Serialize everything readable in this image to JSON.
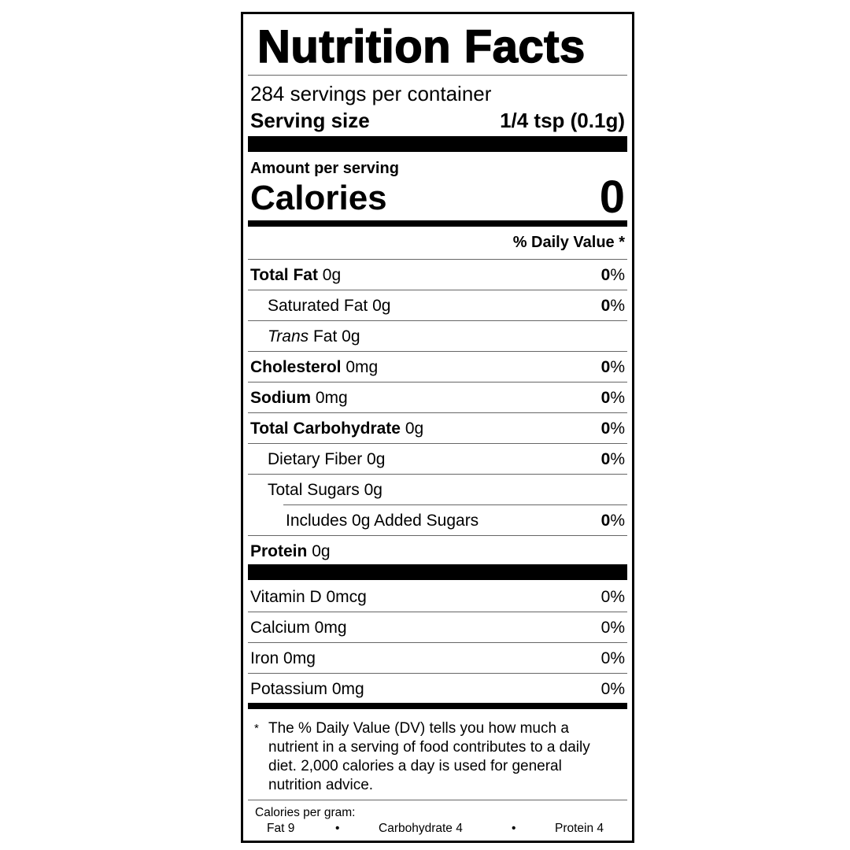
{
  "title": "Nutrition Facts",
  "servings_per_container": "284 servings per container",
  "serving_size": {
    "label": "Serving size",
    "value": "1/4 tsp (0.1g)"
  },
  "amount_per_serving": "Amount per serving",
  "calories": {
    "label": "Calories",
    "value": "0"
  },
  "daily_value_header": "% Daily Value *",
  "nutrients": [
    {
      "name": "Total Fat",
      "amount": "0g",
      "dv": "0",
      "bold": true
    },
    {
      "name": "Saturated Fat",
      "amount": "0g",
      "dv": "0",
      "indent": 1
    },
    {
      "name": "Trans",
      "suffix": "Fat",
      "amount": "0g",
      "dv": "",
      "indent": 1
    },
    {
      "name": "Cholesterol",
      "amount": "0mg",
      "dv": "0",
      "bold": true
    },
    {
      "name": "Sodium",
      "amount": "0mg",
      "dv": "0",
      "bold": true
    },
    {
      "name": "Total Carbohydrate",
      "amount": "0g",
      "dv": "0",
      "bold": true
    },
    {
      "name": "Dietary Fiber",
      "amount": "0g",
      "dv": "0",
      "indent": 1
    },
    {
      "name": "Total Sugars",
      "amount": "0g",
      "dv": "",
      "indent": 1
    },
    {
      "name": "Includes 0g Added Sugars",
      "amount": "",
      "dv": "0",
      "indent": 2
    },
    {
      "name": "Protein",
      "amount": "0g",
      "dv": "",
      "bold": true
    }
  ],
  "percent_sign": "%",
  "vitamins": [
    {
      "name": "Vitamin D 0mcg",
      "dv": "0%"
    },
    {
      "name": "Calcium 0mg",
      "dv": "0%"
    },
    {
      "name": "Iron 0mg",
      "dv": "0%"
    },
    {
      "name": "Potassium 0mg",
      "dv": "0%"
    }
  ],
  "footnote": {
    "asterisk": "*",
    "text": "The % Daily Value (DV) tells you how much a nutrient in a serving of food contributes to a daily diet. 2,000 calories a day is used for general nutrition advice."
  },
  "calories_per_gram": {
    "label": "Calories per gram:",
    "fat": "Fat 9",
    "carbohydrate": "Carbohydrate 4",
    "protein": "Protein 4",
    "separator": "•"
  }
}
